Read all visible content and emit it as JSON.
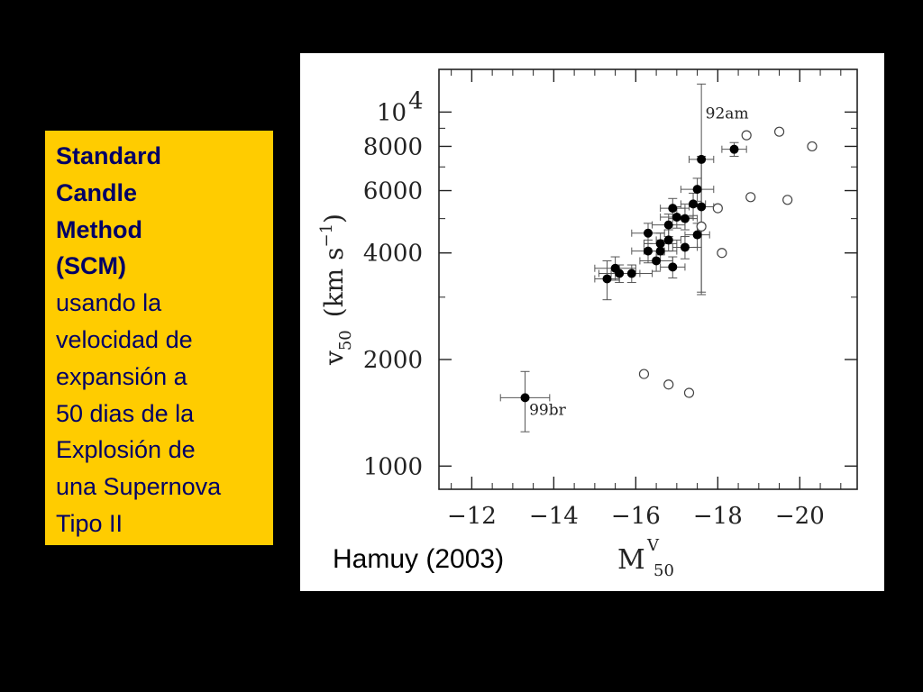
{
  "caption": {
    "bold_lines": [
      "Standard",
      "Candle",
      "Method",
      "(SCM)"
    ],
    "lines": [
      "usando la",
      "velocidad de",
      "expansión a",
      "50 dias de la",
      "Explosión de",
      "una Supernova",
      "Tipo II"
    ]
  },
  "credit": "Hamuy (2003)",
  "colors": {
    "background": "#000000",
    "caption_bg": "#ffcc00",
    "caption_text": "#000066",
    "panel": "#ffffff",
    "ink": "#222222"
  },
  "chart_data": {
    "type": "scatter",
    "xlabel": {
      "main": "M",
      "sup": "V",
      "sub": "50"
    },
    "ylabel": {
      "main": "v",
      "sub": "50",
      "unit": "(km s",
      "unit_exp": "−1",
      "unit_close": ")"
    },
    "xlim": [
      -11.2,
      -21.4
    ],
    "ylim": [
      860,
      13200
    ],
    "y_scale": "log",
    "x_ticks": [
      {
        "value": -12,
        "label": "−12"
      },
      {
        "value": -14,
        "label": "−14"
      },
      {
        "value": -16,
        "label": "−16"
      },
      {
        "value": -18,
        "label": "−18"
      },
      {
        "value": -20,
        "label": "−20"
      }
    ],
    "y_ticks": [
      {
        "value": 1000,
        "label": "1000"
      },
      {
        "value": 2000,
        "label": "2000"
      },
      {
        "value": 4000,
        "label": "4000"
      },
      {
        "value": 6000,
        "label": "6000"
      },
      {
        "value": 8000,
        "label": "8000"
      },
      {
        "value": 10000,
        "label": "10",
        "exp": "4"
      }
    ],
    "series": [
      {
        "marker": "filled",
        "points": [
          {
            "x": -13.3,
            "y": 1560,
            "xerr": 0.6,
            "yerr": [
              1250,
              1850
            ]
          },
          {
            "x": -15.3,
            "y": 3380,
            "xerr": 0.3,
            "yerr": [
              2950,
              3800
            ]
          },
          {
            "x": -15.5,
            "y": 3620,
            "xerr": 0.5,
            "yerr": [
              3350,
              3900
            ]
          },
          {
            "x": -15.6,
            "y": 3500,
            "xerr": 0.5,
            "yerr": [
              3300,
              3700
            ]
          },
          {
            "x": -15.9,
            "y": 3500,
            "xerr": 0.5,
            "yerr": [
              3300,
              3700
            ]
          },
          {
            "x": -16.3,
            "y": 4050,
            "xerr": 0.4,
            "yerr": [
              3750,
              4350
            ]
          },
          {
            "x": -16.3,
            "y": 4550,
            "xerr": 0.4,
            "yerr": [
              4250,
              4850
            ]
          },
          {
            "x": -16.5,
            "y": 3800,
            "xerr": 0.4,
            "yerr": [
              3550,
              4050
            ]
          },
          {
            "x": -16.6,
            "y": 4250,
            "xerr": 0.4,
            "yerr": [
              3950,
              4550
            ]
          },
          {
            "x": -16.6,
            "y": 4050,
            "xerr": 0.4,
            "yerr": [
              3800,
              4300
            ]
          },
          {
            "x": -16.8,
            "y": 4350,
            "xerr": 0.3,
            "yerr": [
              4050,
              4650
            ]
          },
          {
            "x": -16.8,
            "y": 4800,
            "xerr": 0.4,
            "yerr": [
              4450,
              5150
            ]
          },
          {
            "x": -16.9,
            "y": 3650,
            "xerr": 0.3,
            "yerr": [
              3400,
              3900
            ]
          },
          {
            "x": -16.9,
            "y": 5350,
            "xerr": 0.3,
            "yerr": [
              5000,
              5700
            ]
          },
          {
            "x": -17.0,
            "y": 5050,
            "xerr": 0.4,
            "yerr": [
              4700,
              5400
            ]
          },
          {
            "x": -17.2,
            "y": 4150,
            "xerr": 0.3,
            "yerr": [
              3850,
              4450
            ]
          },
          {
            "x": -17.2,
            "y": 5000,
            "xerr": 0.3,
            "yerr": [
              4650,
              5350
            ]
          },
          {
            "x": -17.4,
            "y": 5500,
            "xerr": 0.3,
            "yerr": [
              5100,
              5900
            ]
          },
          {
            "x": -17.5,
            "y": 4500,
            "xerr": 0.3,
            "yerr": [
              4150,
              4850
            ]
          },
          {
            "x": -17.5,
            "y": 6050,
            "xerr": 0.4,
            "yerr": [
              5600,
              6500
            ]
          },
          {
            "x": -17.6,
            "y": 7350,
            "xerr": 0.3,
            "yerr": [
              3050,
              12000
            ]
          },
          {
            "x": -17.6,
            "y": 5400,
            "xerr": 0.3,
            "yerr": [
              3100,
              7500
            ]
          },
          {
            "x": -18.4,
            "y": 7850,
            "xerr": 0.3,
            "yerr": [
              7500,
              8200
            ]
          }
        ]
      },
      {
        "marker": "open",
        "points": [
          {
            "x": -16.2,
            "y": 1820
          },
          {
            "x": -16.8,
            "y": 1700
          },
          {
            "x": -17.3,
            "y": 1610
          },
          {
            "x": -17.6,
            "y": 4750
          },
          {
            "x": -18.0,
            "y": 5350
          },
          {
            "x": -18.1,
            "y": 4000
          },
          {
            "x": -18.8,
            "y": 5750
          },
          {
            "x": -18.7,
            "y": 8600
          },
          {
            "x": -19.5,
            "y": 8800
          },
          {
            "x": -19.7,
            "y": 5650
          },
          {
            "x": -20.3,
            "y": 8000
          }
        ]
      }
    ],
    "annotations": [
      {
        "text": "92am",
        "x": -17.7,
        "y": 9600
      },
      {
        "text": "99br",
        "x": -13.4,
        "y": 1395
      }
    ]
  }
}
